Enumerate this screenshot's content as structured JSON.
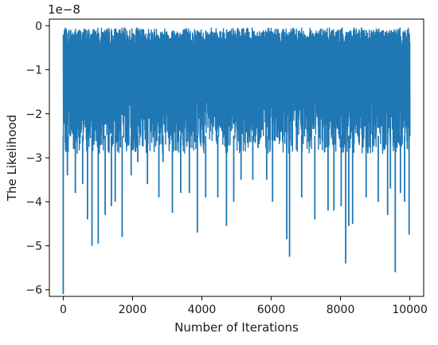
{
  "chart_data": {
    "type": "line",
    "title": "",
    "xlabel": "Number of Iterations",
    "ylabel": "The Likelihood",
    "offset_text": "1e−8",
    "scale_factor": 1e-08,
    "xlim": [
      -400,
      10400
    ],
    "ylim": [
      -6.15,
      0.15
    ],
    "xticks": [
      0,
      2000,
      4000,
      6000,
      8000,
      10000
    ],
    "xtick_labels": [
      "0",
      "2000",
      "4000",
      "6000",
      "8000",
      "10000"
    ],
    "yticks": [
      0,
      -1,
      -2,
      -3,
      -4,
      -5,
      -6
    ],
    "ytick_labels": [
      "0",
      "−1",
      "−2",
      "−3",
      "−4",
      "−5",
      "−6"
    ],
    "grid": false,
    "legend": "none",
    "series": [
      {
        "color": "#1f77b4",
        "n_iterations": 10000,
        "x": [
          0,
          120,
          350,
          560,
          700,
          830,
          1010,
          1210,
          1390,
          1500,
          1700,
          1960,
          2150,
          2430,
          2760,
          2880,
          3150,
          3390,
          3640,
          3870,
          4110,
          4460,
          4710,
          4920,
          5130,
          5470,
          5870,
          6040,
          6450,
          6530,
          6880,
          7260,
          7640,
          7810,
          8020,
          8150,
          8240,
          8350,
          8740,
          9090,
          9360,
          9440,
          9580,
          9730,
          9850,
          9980
        ],
        "y": [
          -6.1,
          -3.4,
          -3.8,
          -3.6,
          -4.4,
          -5.0,
          -4.95,
          -4.3,
          -4.1,
          -4.0,
          -4.8,
          -3.4,
          -3.1,
          -3.6,
          -3.9,
          -3.1,
          -4.25,
          -3.8,
          -3.8,
          -4.7,
          -3.9,
          -3.9,
          -4.55,
          -4.0,
          -3.5,
          -3.5,
          -3.5,
          -4.0,
          -4.85,
          -5.25,
          -3.9,
          -4.4,
          -4.2,
          -4.2,
          -4.1,
          -5.4,
          -4.55,
          -4.5,
          -3.9,
          -4.0,
          -4.3,
          -3.7,
          -5.6,
          -3.8,
          -4.0,
          -4.75
        ],
        "upper_envelope": -0.3,
        "typical_lower": -2.5
      }
    ]
  }
}
